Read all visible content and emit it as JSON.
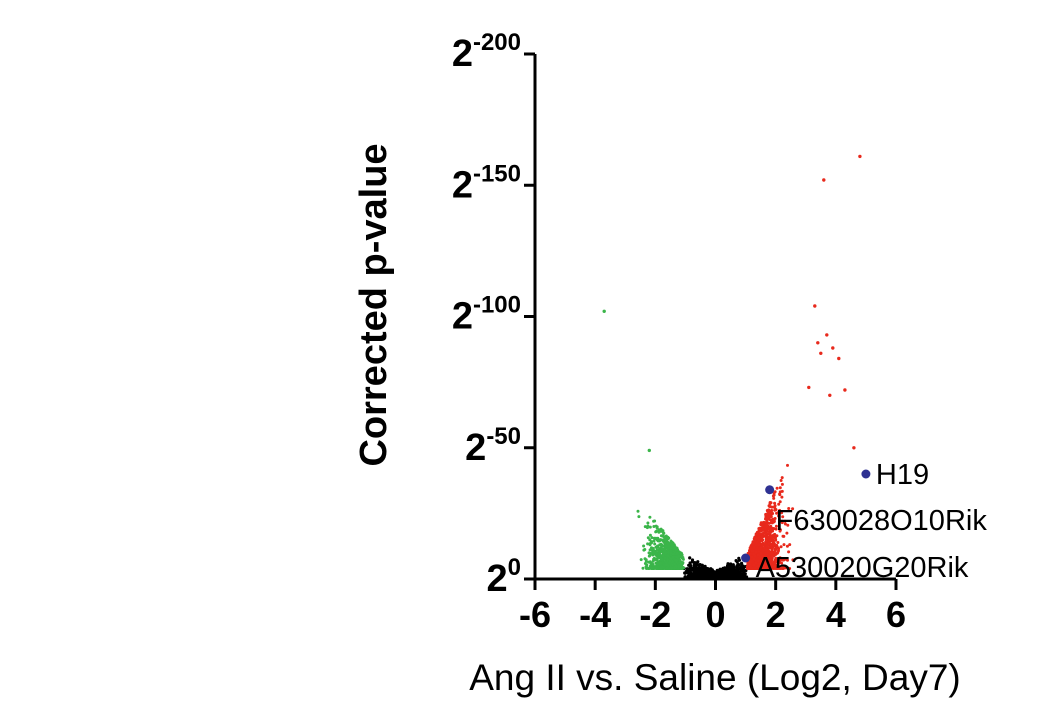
{
  "chart_data": {
    "type": "scatter",
    "title": "",
    "xlabel": "Ang II vs. Saline (Log2, Day7)",
    "ylabel": "Corrected p-value",
    "xlim": [
      -6,
      6
    ],
    "xticks": [
      -6,
      -4,
      -2,
      0,
      2,
      4,
      6
    ],
    "ylim_exponent": [
      0,
      200
    ],
    "yticks": [
      {
        "base": "2",
        "exp": "0",
        "value": 0
      },
      {
        "base": "2",
        "exp": "-50",
        "value": 50
      },
      {
        "base": "2",
        "exp": "-100",
        "value": 100
      },
      {
        "base": "2",
        "exp": "-150",
        "value": 150
      },
      {
        "base": "2",
        "exp": "-200",
        "value": 200
      }
    ],
    "y_scale": "-log2(p)",
    "grid": false,
    "colors": {
      "not_significant": "#000000",
      "down_regulated": "#3bb54a",
      "up_regulated": "#e8291c",
      "highlighted": "#2e3192"
    },
    "highlighted_genes": [
      {
        "name": "H19",
        "x": 5.0,
        "y": 40
      },
      {
        "name": "F630028O10Rik",
        "x": 1.8,
        "y": 34
      },
      {
        "name": "A530020G20Rik",
        "x": 1.0,
        "y": 8
      }
    ],
    "outliers": [
      {
        "x": -3.7,
        "y": 102,
        "group": "down_regulated"
      },
      {
        "x": -2.2,
        "y": 49,
        "group": "down_regulated"
      },
      {
        "x": 4.8,
        "y": 161,
        "group": "up_regulated"
      },
      {
        "x": 3.6,
        "y": 152,
        "group": "up_regulated"
      },
      {
        "x": 3.3,
        "y": 104,
        "group": "up_regulated"
      },
      {
        "x": 3.7,
        "y": 93,
        "group": "up_regulated"
      },
      {
        "x": 3.5,
        "y": 86,
        "group": "up_regulated"
      },
      {
        "x": 4.1,
        "y": 84,
        "group": "up_regulated"
      },
      {
        "x": 3.9,
        "y": 88,
        "group": "up_regulated"
      },
      {
        "x": 3.4,
        "y": 90,
        "group": "up_regulated"
      },
      {
        "x": 4.6,
        "y": 50,
        "group": "up_regulated"
      },
      {
        "x": 4.3,
        "y": 72,
        "group": "up_regulated"
      },
      {
        "x": 3.8,
        "y": 70,
        "group": "up_regulated"
      },
      {
        "x": 3.1,
        "y": 73,
        "group": "up_regulated"
      }
    ]
  }
}
